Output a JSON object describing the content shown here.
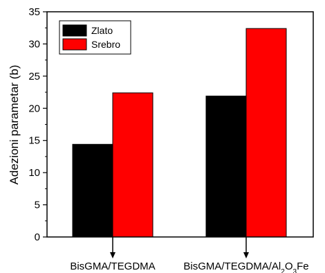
{
  "chart_data": {
    "type": "bar",
    "title": "",
    "xlabel": "",
    "ylabel": "Adezioni parametar (b)",
    "ylim": [
      0,
      35
    ],
    "yticks": [
      0,
      5,
      10,
      15,
      20,
      25,
      30,
      35
    ],
    "grid": false,
    "legend_position": "top-left",
    "categories": [
      {
        "label": "BisGMA/TEGDMA",
        "main": "BisGMA/TEGDMA",
        "tail": [],
        "sep": ""
      },
      {
        "label": "BisGMA/TEGDMA/Al2O3Fe",
        "main": "BisGMA/TEGDMA/Al",
        "tail": [
          {
            "t": "2",
            "sub": true
          },
          {
            "t": "O",
            "sub": false
          },
          {
            "t": "3",
            "sub": true
          },
          {
            "t": "Fe",
            "sub": false
          }
        ],
        "sep": ""
      }
    ],
    "series": [
      {
        "name": "Zlato",
        "color": "#000000",
        "values": [
          14.4,
          21.9
        ]
      },
      {
        "name": "Srebro",
        "color": "#ff0000",
        "values": [
          22.4,
          32.4
        ]
      }
    ]
  }
}
